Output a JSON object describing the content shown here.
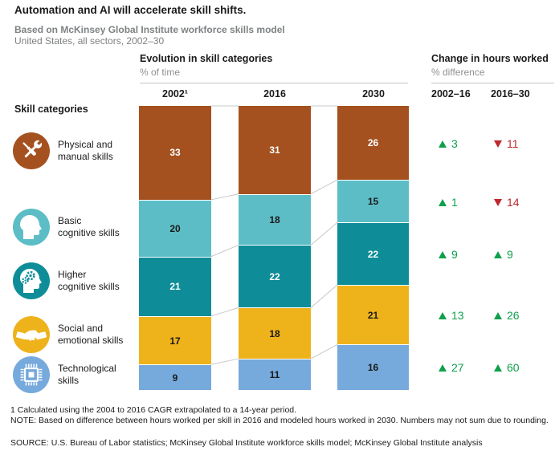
{
  "header": {
    "title": "Automation and AI will accelerate skill shifts.",
    "subtitle": "Based on McKinsey Global Institute workforce skills model",
    "subtitle2": "United States, all sectors, 2002–30"
  },
  "chart": {
    "evolution": {
      "title": "Evolution in skill categories",
      "unit": "% of time",
      "columns": [
        "2002¹",
        "2016",
        "2030"
      ]
    },
    "change": {
      "title": "Change in hours worked",
      "unit": "% difference",
      "columns": [
        "2002–16",
        "2016–30"
      ]
    }
  },
  "left_panel": {
    "heading": "Skill categories",
    "categories": [
      {
        "line1": "Physical and",
        "line2": "manual skills",
        "icon": "tools-icon",
        "color": "#A5511F"
      },
      {
        "line1": "Basic",
        "line2": "cognitive skills",
        "icon": "head-profile-icon",
        "color": "#5CBDC6"
      },
      {
        "line1": "Higher",
        "line2": "cognitive skills",
        "icon": "head-gears-icon",
        "color": "#0E8D99"
      },
      {
        "line1": "Social and",
        "line2": "emotional skills",
        "icon": "handshake-icon",
        "color": "#EEB21B"
      },
      {
        "line1": "Technological",
        "line2": "skills",
        "icon": "chip-icon",
        "color": "#76A9DC"
      }
    ]
  },
  "chart_data": {
    "type": "bar",
    "subtype": "stacked-columns-with-flow-connectors",
    "title": "Evolution in skill categories",
    "unit": "% of time",
    "categories": [
      "2002",
      "2016",
      "2030"
    ],
    "ylim": [
      0,
      100
    ],
    "series": [
      {
        "name": "Physical and manual skills",
        "color": "#A5511F",
        "values": [
          33,
          31,
          26
        ]
      },
      {
        "name": "Basic cognitive skills",
        "color": "#5CBDC6",
        "values": [
          20,
          18,
          15
        ]
      },
      {
        "name": "Higher cognitive skills",
        "color": "#0E8D99",
        "values": [
          21,
          22,
          22
        ]
      },
      {
        "name": "Social and emotional skills",
        "color": "#EEB21B",
        "values": [
          17,
          18,
          21
        ]
      },
      {
        "name": "Technological skills",
        "color": "#76A9DC",
        "values": [
          9,
          11,
          16
        ]
      }
    ],
    "changes": {
      "title": "Change in hours worked",
      "unit": "% difference",
      "periods": [
        "2002–16",
        "2016–30"
      ],
      "up_color": "#0FA04C",
      "down_color": "#C1272D",
      "rows": [
        {
          "skill": "Physical and manual skills",
          "values": [
            {
              "direction": "up",
              "value": 3
            },
            {
              "direction": "down",
              "value": 11
            }
          ]
        },
        {
          "skill": "Basic cognitive skills",
          "values": [
            {
              "direction": "up",
              "value": 1
            },
            {
              "direction": "down",
              "value": 14
            }
          ]
        },
        {
          "skill": "Higher cognitive skills",
          "values": [
            {
              "direction": "up",
              "value": 9
            },
            {
              "direction": "up",
              "value": 9
            }
          ]
        },
        {
          "skill": "Social and emotional skills",
          "values": [
            {
              "direction": "up",
              "value": 13
            },
            {
              "direction": "up",
              "value": 26
            }
          ]
        },
        {
          "skill": "Technological skills",
          "values": [
            {
              "direction": "up",
              "value": 27
            },
            {
              "direction": "up",
              "value": 60
            }
          ]
        }
      ]
    }
  },
  "footnotes": {
    "footnote1": "1  Calculated using the 2004 to 2016 CAGR extrapolated to a 14-year period.",
    "note": "NOTE: Based on difference between hours worked per skill in 2016 and modeled hours worked in 2030. Numbers may not sum due to rounding.",
    "source": "SOURCE:  U.S. Bureau of Labor statistics; McKinsey Global Institute workforce skills model; McKinsey Global Institute analysis"
  }
}
